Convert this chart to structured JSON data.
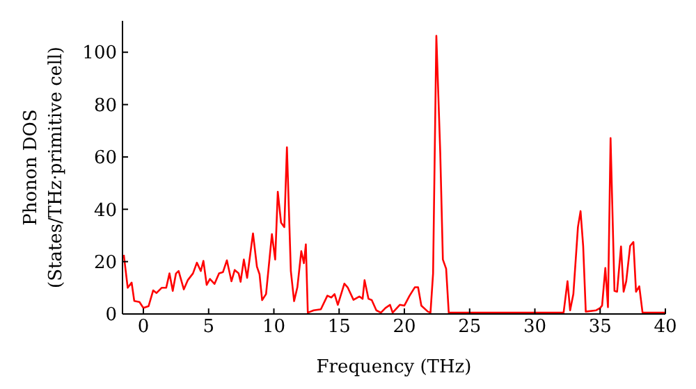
{
  "chart_data": {
    "type": "line",
    "xlabel": "Frequency (THz)",
    "ylabel": "Phonon DOS\n(States/THz·primitive cell)",
    "xlim": [
      -1.6,
      40
    ],
    "ylim": [
      0,
      112
    ],
    "xticks": [
      0,
      5,
      10,
      15,
      20,
      25,
      30,
      35,
      40
    ],
    "yticks": [
      0,
      20,
      40,
      60,
      80,
      100
    ],
    "grid": false,
    "legend": false,
    "marker": "none",
    "line_style": "solid",
    "series": [
      {
        "color": "#ff0000",
        "x": [
          -1.5,
          -1.2,
          -0.9,
          -0.7,
          -0.3,
          0,
          0.4,
          0.75,
          1.0,
          1.4,
          1.75,
          2.0,
          2.25,
          2.5,
          2.7,
          3.1,
          3.4,
          3.8,
          4.1,
          4.4,
          4.6,
          4.85,
          5.1,
          5.45,
          5.8,
          6.1,
          6.4,
          6.75,
          7.0,
          7.3,
          7.45,
          7.7,
          7.95,
          8.4,
          8.7,
          8.9,
          9.1,
          9.4,
          9.85,
          10.1,
          10.3,
          10.55,
          10.8,
          11.0,
          11.3,
          11.55,
          11.8,
          12.1,
          12.3,
          12.45,
          12.6,
          13.05,
          13.6,
          14.1,
          14.4,
          14.65,
          14.9,
          15.4,
          15.65,
          16.1,
          16.55,
          16.8,
          16.95,
          17.25,
          17.5,
          17.85,
          18.2,
          18.55,
          18.9,
          19.1,
          19.65,
          20.0,
          20.4,
          20.8,
          21.05,
          21.3,
          21.8,
          22.0,
          22.2,
          22.45,
          22.75,
          22.95,
          23.2,
          23.4,
          32.2,
          32.5,
          32.7,
          32.95,
          33.3,
          33.5,
          33.7,
          33.9,
          34.7,
          35.0,
          35.15,
          35.4,
          35.6,
          35.8,
          36.1,
          36.3,
          36.6,
          36.8,
          37.0,
          37.3,
          37.55,
          37.75,
          38.0,
          38.25,
          39.95
        ],
        "values": [
          22.6,
          10,
          12,
          5,
          4.6,
          2.3,
          3,
          9,
          8,
          10,
          10,
          15.5,
          8.8,
          15.5,
          16.4,
          9.4,
          12.9,
          15.5,
          19.6,
          16.4,
          20.3,
          11.1,
          13.4,
          11.5,
          15.5,
          16,
          20.5,
          12.5,
          16.8,
          15.5,
          12.3,
          20.8,
          13.8,
          30.8,
          18.1,
          15.2,
          5.3,
          7.6,
          30.5,
          20.8,
          46.7,
          34.9,
          33.2,
          63.7,
          16.4,
          4.9,
          10.2,
          24,
          19.4,
          26.6,
          0.5,
          1.4,
          1.8,
          7,
          6.3,
          7.6,
          3.5,
          11.6,
          10.2,
          5.4,
          6.7,
          5.8,
          12.9,
          5.8,
          5.3,
          1.4,
          0.5,
          2.3,
          3.5,
          0.5,
          3.5,
          3.2,
          7,
          10.2,
          10.2,
          3.2,
          0.9,
          0.5,
          15.5,
          106.3,
          61.4,
          20.8,
          17.3,
          0.5,
          0.5,
          12.5,
          1.4,
          7.6,
          33.2,
          39.3,
          26,
          0.9,
          1.4,
          2.3,
          3.2,
          17.6,
          2.6,
          67.2,
          8.8,
          8.5,
          25.8,
          8.5,
          12.5,
          26,
          27.5,
          8.5,
          10.6,
          0.5,
          0.5
        ]
      }
    ]
  }
}
